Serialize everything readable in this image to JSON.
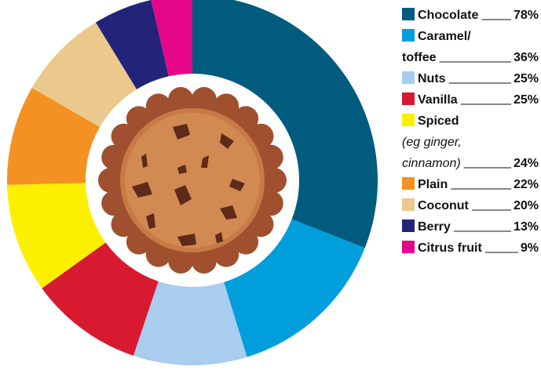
{
  "chart_data": {
    "type": "donut",
    "categories": [
      "Chocolate",
      "Caramel/toffee",
      "Nuts",
      "Vanilla",
      "Spiced",
      "Plain",
      "Coconut",
      "Berry",
      "Citrus fruit"
    ],
    "annotations": [
      "(eg ginger, cinnamon)"
    ],
    "values": [
      78,
      36,
      25,
      25,
      24,
      22,
      20,
      13,
      9
    ],
    "value_labels": [
      "78%",
      "36%",
      "25%",
      "25%",
      "24%",
      "22%",
      "20%",
      "13%",
      "9%"
    ],
    "colors": [
      "#005b7f",
      "#009edb",
      "#a8cdee",
      "#d71a30",
      "#fcef00",
      "#f39222",
      "#ebc98c",
      "#232379",
      "#e5068a"
    ]
  }
}
